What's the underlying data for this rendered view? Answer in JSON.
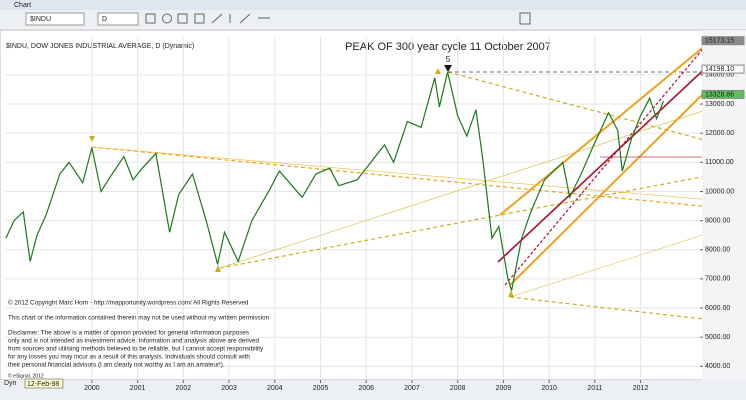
{
  "toolbar": {
    "window_title": "Chart",
    "symbol": "$INDU",
    "interval": "D"
  },
  "chart_data": {
    "type": "line",
    "header": "$INDU, DOW JONES INDUSTRIAL AVERAGE, D (Dynamic)",
    "title": "PEAK OF 300 year cycle 11 October 2007",
    "wave_label": "5",
    "x": [
      1998.12,
      1998.3,
      1998.5,
      1998.65,
      1998.8,
      1999.0,
      1999.3,
      1999.5,
      1999.8,
      2000.0,
      2000.2,
      2000.4,
      2000.7,
      2000.9,
      2001.1,
      2001.4,
      2001.7,
      2001.9,
      2002.2,
      2002.5,
      2002.75,
      2002.9,
      2003.2,
      2003.5,
      2003.9,
      2004.1,
      2004.6,
      2004.9,
      2005.2,
      2005.4,
      2005.8,
      2006.1,
      2006.4,
      2006.6,
      2006.9,
      2007.2,
      2007.5,
      2007.6,
      2007.78,
      2008.0,
      2008.2,
      2008.4,
      2008.55,
      2008.75,
      2008.9,
      2009.1,
      2009.18,
      2009.4,
      2009.6,
      2009.9,
      2010.3,
      2010.45,
      2010.7,
      2010.95,
      2011.3,
      2011.5,
      2011.6,
      2011.8,
      2012.0,
      2012.2,
      2012.35,
      2012.5
    ],
    "series": [
      {
        "name": "$INDU",
        "color": "#1a7a1a",
        "values": [
          8400,
          9000,
          9300,
          7600,
          8500,
          9200,
          10600,
          11000,
          10300,
          11500,
          10000,
          10500,
          11200,
          10400,
          10800,
          11300,
          8600,
          9900,
          10600,
          9000,
          7500,
          8600,
          7600,
          9000,
          10100,
          10700,
          9800,
          10600,
          10800,
          10200,
          10400,
          11000,
          11600,
          11000,
          12400,
          12200,
          13900,
          12900,
          14100,
          12600,
          11900,
          12800,
          11100,
          8400,
          8800,
          7000,
          6600,
          8400,
          9300,
          10400,
          11000,
          9800,
          10600,
          11500,
          12700,
          12100,
          10700,
          11800,
          12600,
          13200,
          12500,
          13100
        ]
      }
    ],
    "xlim": [
      1998.1,
      2013.3
    ],
    "xticks": [
      2000,
      2001,
      2002,
      2003,
      2004,
      2005,
      2006,
      2007,
      2008,
      2009,
      2010,
      2011,
      2012
    ],
    "ylim": [
      3600,
      15300
    ],
    "yticks": [
      {
        "value": 4000,
        "label": "4000.00"
      },
      {
        "value": 5000,
        "label": "5000.00"
      },
      {
        "value": 6000,
        "label": "6000.00"
      },
      {
        "value": 7000,
        "label": "7000.00"
      },
      {
        "value": 8000,
        "label": "8000.00"
      },
      {
        "value": 9000,
        "label": "9000.00"
      },
      {
        "value": 10000,
        "label": "10000.00"
      },
      {
        "value": 11000,
        "label": "11000.00"
      },
      {
        "value": 12000,
        "label": "12000.00"
      },
      {
        "value": 13000,
        "label": "13000.00"
      },
      {
        "value": 14000,
        "label": "14000.00"
      }
    ],
    "price_markers": [
      {
        "value": 15173.15,
        "label": "15173.15",
        "color": "#8a8a8a"
      },
      {
        "value": 14198.1,
        "label": "14198.10",
        "color": "#ffffff"
      },
      {
        "value": 13328.86,
        "label": "13328.86",
        "color": "#5cc05c"
      }
    ],
    "notes": [
      "© 2012 Copyright Marc Horn - http://mapportunity.wordpress.com/  All Rights Reserved",
      "This chart or the information contained therein may not be used without my written permission",
      "Disclaimer: The above is a matter of opinion provided for general information purposes",
      "only and is not intended as investment advice. Information and analysis above are derived",
      "from sources and utilising methods believed to be reliable, but I cannot accept responsibility",
      "for any losses you may incur as a result of this analysis. Individuals should consult with",
      "their personal financial advisors (I am clearly not worthy as I am an amateur!)."
    ],
    "source": "© eSignal, 2012",
    "footer_mode": "Dyn",
    "footer_date": "12-Feb-98"
  }
}
